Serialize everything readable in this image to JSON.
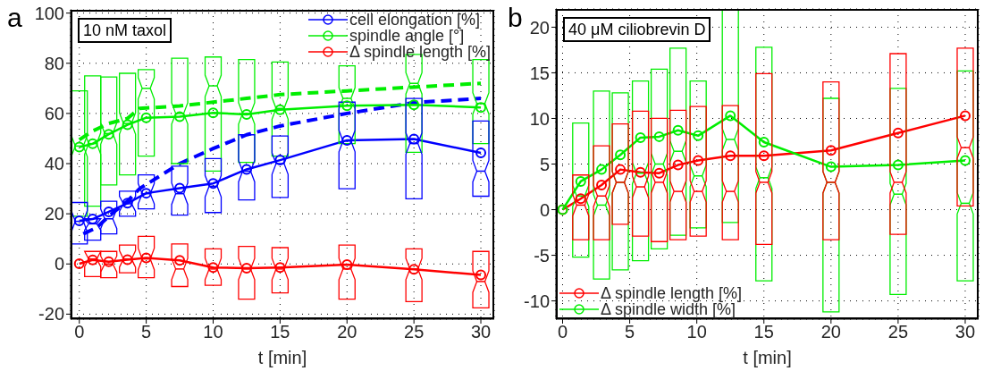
{
  "chart_data": [
    {
      "type": "line",
      "xlabel": "t [min]",
      "annotations": [
        "a",
        "10 nM taxol"
      ],
      "xlim": [
        -0.65,
        31
      ],
      "ylim": [
        -22,
        101.3
      ],
      "xticks": [
        0,
        5,
        10,
        15,
        20,
        25,
        30
      ],
      "yticks": [
        -20,
        0,
        20,
        40,
        60,
        80,
        100
      ],
      "grid": true,
      "legend": "top right",
      "series": [
        {
          "type": "box",
          "color": "#00ee00",
          "x": [
            0,
            1,
            2.2,
            3.6,
            5,
            7.5,
            10,
            12.5,
            15,
            20,
            25,
            30
          ],
          "boxes": [
            {
              "low": 19,
              "q1": 19,
              "median": 47,
              "q3": 69,
              "high": 69
            },
            {
              "low": 23,
              "q1": 23,
              "median": 48,
              "q3": 75,
              "high": 75
            },
            {
              "low": 31.5,
              "q1": 31.5,
              "median": 52,
              "q3": 74.5,
              "high": 74.5
            },
            {
              "low": 35.5,
              "q1": 35.5,
              "median": 56,
              "q3": 76,
              "high": 76
            },
            {
              "low": 43,
              "q1": 43,
              "median": 70,
              "q3": 77.5,
              "high": 77.5
            },
            {
              "low": 40,
              "q1": 40,
              "median": 60,
              "q3": 82,
              "high": 82
            },
            {
              "low": 37,
              "q1": 37,
              "median": 71,
              "q3": 82.5,
              "high": 82.5
            },
            {
              "low": 40.5,
              "q1": 40.5,
              "median": 60,
              "q3": 81.5,
              "high": 81.5
            },
            {
              "low": 43,
              "q1": 43,
              "median": 62,
              "q3": 80.5,
              "high": 80.5
            },
            {
              "low": 48,
              "q1": 48,
              "median": 66,
              "q3": 79,
              "high": 79
            },
            {
              "low": 44.5,
              "q1": 44.5,
              "median": 72,
              "q3": 83.5,
              "high": 83.5
            },
            {
              "low": 48,
              "q1": 48,
              "median": 64,
              "q3": 81.5,
              "high": 81.5
            }
          ]
        },
        {
          "type": "box",
          "color": "#0000ff",
          "x": [
            0,
            1,
            2.2,
            3.6,
            5,
            7.5,
            10,
            12.5,
            15,
            20,
            25,
            30
          ],
          "boxes": [
            {
              "low": 8,
              "q1": 8,
              "median": 17,
              "q3": 24.5,
              "high": 24.5
            },
            {
              "low": 9.5,
              "q1": 9.5,
              "median": 16,
              "q3": 18,
              "high": 18
            },
            {
              "low": 12,
              "q1": 12,
              "median": 18,
              "q3": 25,
              "high": 25
            },
            {
              "low": 19,
              "q1": 19,
              "median": 24,
              "q3": 29,
              "high": 29
            },
            {
              "low": 22,
              "q1": 22,
              "median": 28,
              "q3": 35.5,
              "high": 35.5
            },
            {
              "low": 19.5,
              "q1": 19.5,
              "median": 28,
              "q3": 39,
              "high": 39
            },
            {
              "low": 20.5,
              "q1": 20.5,
              "median": 31,
              "q3": 42,
              "high": 42
            },
            {
              "low": 25.5,
              "q1": 25.5,
              "median": 37,
              "q3": 51.5,
              "high": 51.5
            },
            {
              "low": 26.5,
              "q1": 26.5,
              "median": 40,
              "q3": 51,
              "high": 51
            },
            {
              "low": 30,
              "q1": 30,
              "median": 49,
              "q3": 64.5,
              "high": 64.5
            },
            {
              "low": 26,
              "q1": 26,
              "median": 48,
              "q3": 66,
              "high": 66
            },
            {
              "low": 27,
              "q1": 27,
              "median": 37,
              "q3": 57,
              "high": 57
            }
          ]
        },
        {
          "type": "box",
          "color": "#ff0000",
          "x": [
            1,
            2.2,
            3.6,
            5,
            7.5,
            10,
            12.5,
            15,
            20,
            25,
            30
          ],
          "boxes": [
            {
              "low": -5,
              "q1": -5,
              "median": 2,
              "q3": 5,
              "high": 5
            },
            {
              "low": -5.5,
              "q1": -5.5,
              "median": 0,
              "q3": 5,
              "high": 5
            },
            {
              "low": -3.5,
              "q1": -3.5,
              "median": 2,
              "q3": 7.5,
              "high": 7.5
            },
            {
              "low": -5.5,
              "q1": -5.5,
              "median": 2,
              "q3": 11,
              "high": 11
            },
            {
              "low": -9,
              "q1": -9,
              "median": -2,
              "q3": 8,
              "high": 8
            },
            {
              "low": -8.5,
              "q1": -8.5,
              "median": -2,
              "q3": 6,
              "high": 6
            },
            {
              "low": -14,
              "q1": -14,
              "median": -2,
              "q3": 7,
              "high": 7
            },
            {
              "low": -11.5,
              "q1": -11.5,
              "median": -2,
              "q3": 6.5,
              "high": 6.5
            },
            {
              "low": -14,
              "q1": -14,
              "median": -2,
              "q3": 7.5,
              "high": 7.5
            },
            {
              "low": -15,
              "q1": -15,
              "median": -2,
              "q3": 6,
              "high": 6
            },
            {
              "low": -17.5,
              "q1": -17.5,
              "median": -7,
              "q3": 5,
              "high": 5
            }
          ]
        },
        {
          "line_style": "dashed",
          "marker": "none",
          "color": "#00ee00",
          "x": [
            0,
            1,
            2.2,
            3.6,
            4.5,
            7.5,
            10,
            12.5,
            15,
            20,
            25,
            30
          ],
          "values": [
            49.5,
            53,
            56,
            58,
            62,
            63,
            64.5,
            66,
            67.5,
            69,
            70.5,
            72
          ]
        },
        {
          "line_style": "dashed",
          "marker": "none",
          "color": "#0000ff",
          "x": [
            0.3,
            1.3,
            2.3,
            3.6,
            4.5,
            7.5,
            10,
            12.5,
            15,
            20,
            25,
            30
          ],
          "values": [
            12,
            14.5,
            19.5,
            25,
            30,
            40,
            46,
            51.5,
            55,
            60,
            64.3,
            66
          ]
        },
        {
          "name": "cell elongation [%]",
          "marker": "circle",
          "color": "#0000ff",
          "x": [
            0,
            1,
            2.2,
            3.6,
            5,
            7.5,
            10,
            12.5,
            15,
            20,
            25,
            30
          ],
          "values": [
            17.2,
            17.9,
            20.8,
            24.2,
            28.2,
            30.2,
            32.1,
            37.7,
            41.4,
            49.3,
            49.8,
            44.3
          ]
        },
        {
          "name": "spindle angle [°]",
          "marker": "circle",
          "color": "#00ee00",
          "x": [
            0,
            1,
            2.2,
            3.6,
            5,
            7.5,
            10,
            12.5,
            15,
            20,
            25,
            30
          ],
          "values": [
            46.6,
            47.9,
            51.7,
            55.5,
            58.3,
            58.7,
            60.2,
            59.6,
            61.5,
            63.1,
            63.4,
            62.4
          ]
        },
        {
          "name": "Δ spindle length [%]",
          "marker": "circle",
          "color": "#ff0000",
          "x": [
            0,
            1,
            2.2,
            3.6,
            5,
            7.5,
            10,
            12.5,
            15,
            20,
            25,
            30
          ],
          "values": [
            0.1,
            1.6,
            0.9,
            1.7,
            2.4,
            1.4,
            -1.4,
            -1.7,
            -1.4,
            -0.3,
            -2.1,
            -4.4
          ]
        }
      ]
    },
    {
      "type": "line",
      "xlabel": "t [min]",
      "annotations": [
        "b",
        "40 μM ciliobrevin D"
      ],
      "xlim": [
        -0.5,
        31
      ],
      "ylim": [
        -12,
        22
      ],
      "xticks": [
        0,
        5,
        10,
        15,
        20,
        25,
        30
      ],
      "yticks": [
        -10,
        -5,
        0,
        5,
        10,
        15,
        20
      ],
      "grid": true,
      "legend": "bottom left",
      "series": [
        {
          "type": "box",
          "color": "#00ee00",
          "x": [
            1.35,
            2.9,
            4.3,
            5.8,
            7.2,
            8.6,
            10.1,
            12.5,
            15,
            20,
            25,
            30
          ],
          "boxes": [
            {
              "low": -5.2,
              "q1": -5.2,
              "median": 1.5,
              "q3": 9.5,
              "high": 9.5
            },
            {
              "low": -7.6,
              "q1": -7.6,
              "median": 0.5,
              "q3": 13,
              "high": 13
            },
            {
              "low": -6.6,
              "q1": -6.6,
              "median": 3,
              "q3": 12.8,
              "high": 12.8
            },
            {
              "low": -5.6,
              "q1": -5.6,
              "median": 4,
              "q3": 14.1,
              "high": 14.1
            },
            {
              "low": -4.3,
              "q1": -4.3,
              "median": 5,
              "q3": 15.4,
              "high": 15.4
            },
            {
              "low": -2.8,
              "q1": -2.8,
              "median": 6.4,
              "q3": 17.7,
              "high": 17.7
            },
            {
              "low": -2,
              "q1": -2,
              "median": 3.7,
              "q3": 14.1,
              "high": 14.1
            },
            {
              "low": -1.4,
              "q1": -1.4,
              "median": 7.7,
              "q3": 22,
              "high": 22
            },
            {
              "low": -7.8,
              "q1": -7.8,
              "median": 3.5,
              "q3": 17.8,
              "high": 17.8
            },
            {
              "low": -11.2,
              "q1": -11.2,
              "median": 3,
              "q3": 12.2,
              "high": 12.2
            },
            {
              "low": -9.3,
              "q1": -9.3,
              "median": 1.7,
              "q3": 13.3,
              "high": 13.3
            },
            {
              "low": -7.8,
              "q1": -7.8,
              "median": 0.7,
              "q3": 15.2,
              "high": 15.2
            }
          ]
        },
        {
          "type": "box",
          "color": "#ff0000",
          "x": [
            1.35,
            2.9,
            4.3,
            5.8,
            7.2,
            8.6,
            10.1,
            12.5,
            15,
            20,
            25,
            30
          ],
          "boxes": [
            {
              "low": -3.3,
              "q1": -3.3,
              "median": 0.5,
              "q3": 3.8,
              "high": 3.8
            },
            {
              "low": -3.3,
              "q1": -3.3,
              "median": 1.5,
              "q3": 7,
              "high": 7
            },
            {
              "low": -1.6,
              "q1": -1.6,
              "median": 3,
              "q3": 9.4,
              "high": 9.4
            },
            {
              "low": -2.9,
              "q1": -2.9,
              "median": 2.5,
              "q3": 10.8,
              "high": 10.8
            },
            {
              "low": -3.5,
              "q1": -3.5,
              "median": 3,
              "q3": 10,
              "high": 10
            },
            {
              "low": -3.3,
              "q1": -3.3,
              "median": 2,
              "q3": 10.9,
              "high": 10.9
            },
            {
              "low": -2.9,
              "q1": -2.9,
              "median": 2,
              "q3": 11.3,
              "high": 11.3
            },
            {
              "low": -3.3,
              "q1": -3.3,
              "median": 2,
              "q3": 11.4,
              "high": 11.4
            },
            {
              "low": -3.8,
              "q1": -3.8,
              "median": 3,
              "q3": 14.9,
              "high": 14.9
            },
            {
              "low": -3.3,
              "q1": -3.3,
              "median": 3,
              "q3": 14,
              "high": 14
            },
            {
              "low": -2.7,
              "q1": -2.7,
              "median": 3,
              "q3": 17.1,
              "high": 17.1
            },
            {
              "low": 0.4,
              "q1": 0.4,
              "median": 6.8,
              "q3": 17.7,
              "high": 17.7
            }
          ]
        },
        {
          "name": "Δ spindle length [%]",
          "marker": "circle",
          "color": "#ff0000",
          "x": [
            0,
            1.35,
            2.9,
            4.3,
            5.8,
            7.2,
            8.6,
            10.1,
            12.5,
            15,
            20,
            25,
            30
          ],
          "values": [
            0,
            1.2,
            2.7,
            4.4,
            4.1,
            4,
            4.9,
            5.4,
            5.9,
            5.9,
            6.5,
            8.4,
            10.3
          ]
        },
        {
          "name": "Δ spindle width [%]",
          "marker": "circle",
          "color": "#00ee00",
          "x": [
            0,
            1.35,
            2.9,
            4.3,
            5.8,
            7.2,
            8.6,
            10.1,
            12.5,
            15,
            20,
            25,
            30
          ],
          "values": [
            0,
            3.1,
            4.4,
            6,
            7.9,
            8,
            8.7,
            8.1,
            10.3,
            7.4,
            4.7,
            4.9,
            5.4
          ]
        }
      ]
    }
  ]
}
